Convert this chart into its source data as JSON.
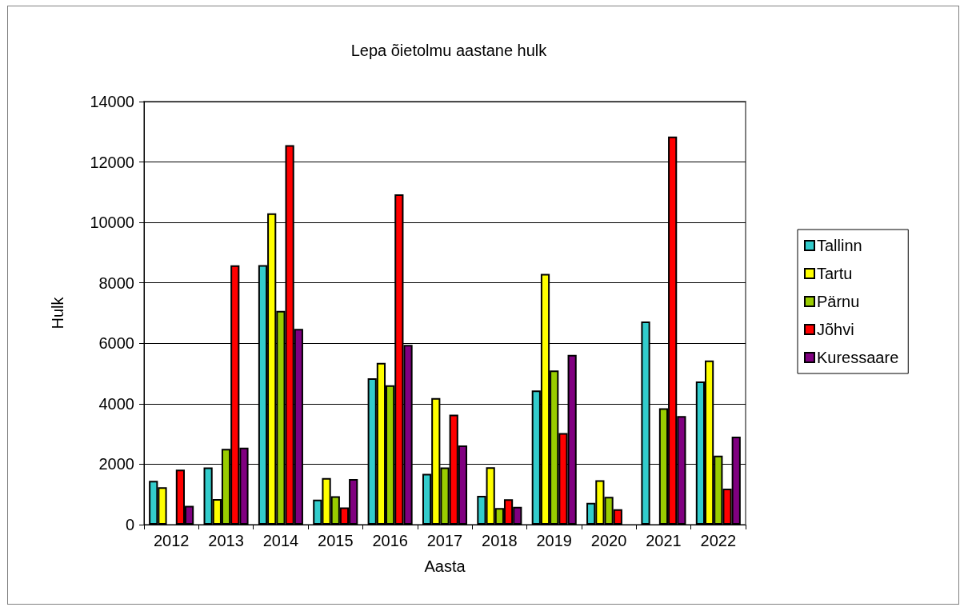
{
  "chart_data": {
    "type": "bar",
    "title": "Lepa õietolmu aastane hulk",
    "xlabel": "Aasta",
    "ylabel": "Hulk",
    "categories": [
      "2012",
      "2013",
      "2014",
      "2015",
      "2016",
      "2017",
      "2018",
      "2019",
      "2020",
      "2021",
      "2022"
    ],
    "series": [
      {
        "name": "Tallinn",
        "color": "#33cccc",
        "values": [
          1450,
          1890,
          8590,
          830,
          4840,
          1680,
          950,
          4440,
          720,
          6720,
          4740
        ]
      },
      {
        "name": "Tartu",
        "color": "#ffff00",
        "values": [
          1240,
          850,
          10300,
          1540,
          5350,
          4190,
          1900,
          8300,
          1470,
          null,
          5430
        ]
      },
      {
        "name": "Pärnu",
        "color": "#99cc00",
        "values": [
          null,
          2510,
          7070,
          940,
          4610,
          1890,
          550,
          5100,
          920,
          3850,
          2280
        ]
      },
      {
        "name": "Jõhvi",
        "color": "#ff0000",
        "values": [
          1820,
          8580,
          12560,
          570,
          10930,
          3640,
          840,
          3030,
          510,
          12840,
          1190
        ]
      },
      {
        "name": "Kuressaare",
        "color": "#800080",
        "values": [
          620,
          2550,
          6480,
          1510,
          5950,
          2620,
          590,
          5620,
          null,
          3590,
          2910
        ]
      }
    ],
    "ylim": [
      0,
      14000
    ],
    "yticks": [
      0,
      2000,
      4000,
      6000,
      8000,
      10000,
      12000,
      14000
    ],
    "grid": "y",
    "legend": "right"
  }
}
